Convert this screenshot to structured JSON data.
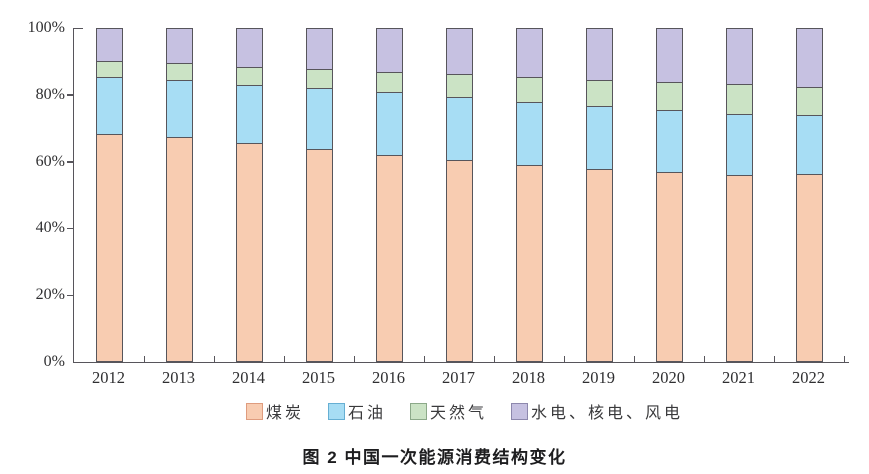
{
  "caption": {
    "text": "图 2  中国一次能源消费结构变化"
  },
  "chart_data": {
    "type": "bar",
    "subtype": "stacked-percent",
    "title": "图 2  中国一次能源消费结构变化",
    "categories": [
      "2012",
      "2013",
      "2014",
      "2015",
      "2016",
      "2017",
      "2018",
      "2019",
      "2020",
      "2021",
      "2022"
    ],
    "series": [
      {
        "name": "煤炭",
        "color": "#f8ccb1",
        "legend_border": "#df9c7e",
        "values": [
          68.5,
          67.4,
          65.8,
          63.8,
          62.2,
          60.6,
          59.0,
          57.7,
          56.9,
          56.0,
          56.2
        ]
      },
      {
        "name": "石油",
        "color": "#a7ddf4",
        "legend_border": "#66afd3",
        "values": [
          17.0,
          17.1,
          17.3,
          18.4,
          18.7,
          18.9,
          18.9,
          19.0,
          18.8,
          18.5,
          17.9
        ]
      },
      {
        "name": "天然气",
        "color": "#cbe3c5",
        "legend_border": "#8ca989",
        "values": [
          4.8,
          5.3,
          5.6,
          5.8,
          6.1,
          6.9,
          7.6,
          8.0,
          8.4,
          8.9,
          8.4
        ]
      },
      {
        "name": "水电、核电、风电",
        "color": "#c6c1e1",
        "legend_border": "#8d88ad",
        "values": [
          9.7,
          10.2,
          11.3,
          12.0,
          13.0,
          13.6,
          14.5,
          15.3,
          15.9,
          16.6,
          17.5
        ]
      }
    ],
    "y_ticks": [
      "0%",
      "20%",
      "40%",
      "60%",
      "80%",
      "100%"
    ],
    "y_tick_percents": [
      0,
      20,
      40,
      60,
      80,
      100
    ],
    "ylim": [
      0,
      100
    ],
    "xlabel": "",
    "ylabel": "",
    "grid": false,
    "legend_position": "bottom",
    "bar_border_color": "#57555b",
    "axis_color": "#57555b",
    "background_color": "#ffffff"
  }
}
